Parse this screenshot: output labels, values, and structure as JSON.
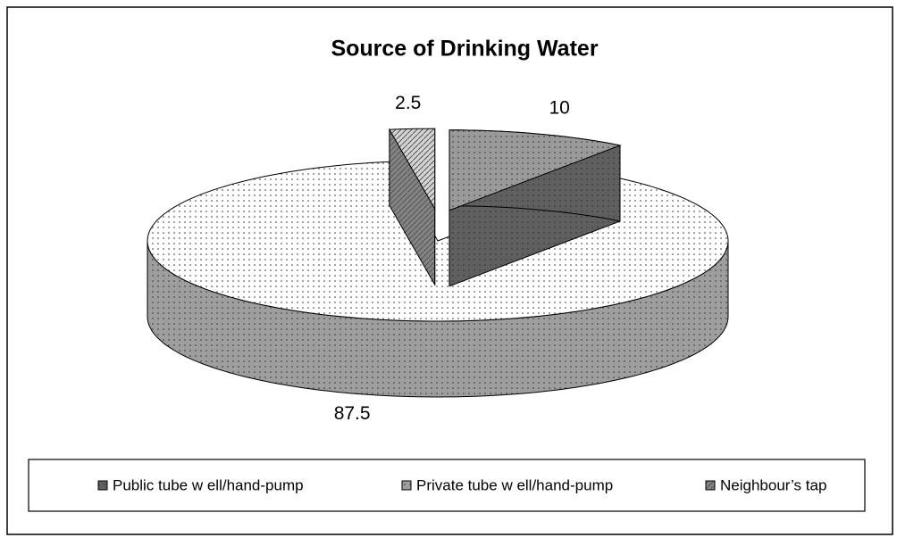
{
  "chart_data": {
    "type": "pie3d",
    "title": "Source of Drinking Water",
    "categories": [
      "Public tube w ell/hand-pump",
      "Private tube w ell/hand-pump",
      "Neighbour’s tap"
    ],
    "values": [
      10,
      87.5,
      2.5
    ],
    "colors": [
      "#9a9a9a",
      "#ffffff",
      "#d4d4d4"
    ],
    "exploded": [
      true,
      false,
      true
    ],
    "legend": "bottom"
  }
}
